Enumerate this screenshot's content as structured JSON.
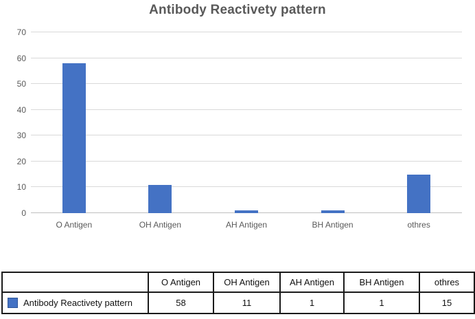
{
  "chart_data": {
    "type": "bar",
    "title": "Antibody Reactivety pattern",
    "categories": [
      "O Antigen",
      "OH Antigen",
      "AH Antigen",
      "BH Antigen",
      "othres"
    ],
    "series": [
      {
        "name": "Antibody Reactivety pattern",
        "values": [
          58,
          11,
          1,
          1,
          15
        ]
      }
    ],
    "ylim": [
      0,
      70
    ],
    "yticks": [
      0,
      10,
      20,
      30,
      40,
      50,
      60,
      70
    ],
    "grid": true,
    "legend_position": "bottom-table",
    "colors": {
      "bar": "#4472C4",
      "bar_border": "#2F5597",
      "gridline": "#D9D9D9",
      "axis_line": "#BFBFBF",
      "tick_label": "#595959",
      "title": "#595959",
      "table_border": "#1A1A1A",
      "table_text": "#111111"
    }
  },
  "data_table": {
    "corner": "",
    "headers": [
      "O Antigen",
      "OH Antigen",
      "AH Antigen",
      "BH Antigen",
      "othres"
    ],
    "rows": [
      {
        "label": "Antibody Reactivety pattern",
        "swatch": "#4472C4",
        "values": [
          "58",
          "11",
          "1",
          "1",
          "15"
        ]
      }
    ]
  }
}
